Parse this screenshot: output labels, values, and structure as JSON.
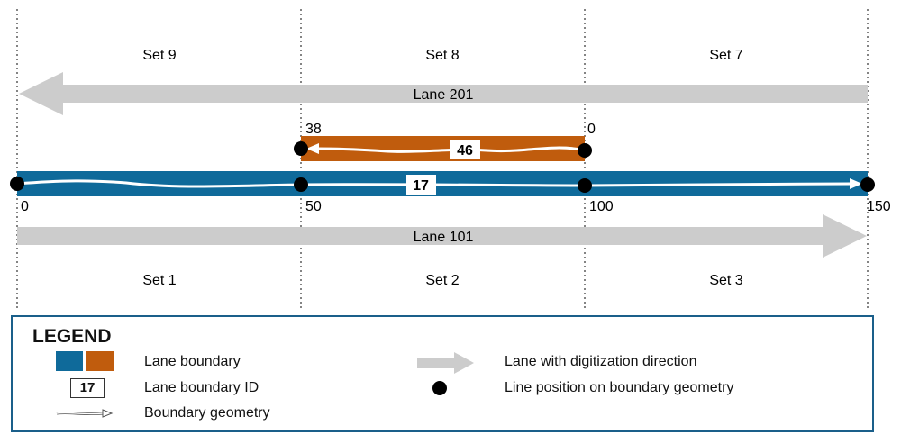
{
  "sets_top": [
    "Set 9",
    "Set 8",
    "Set 7"
  ],
  "sets_bottom": [
    "Set 1",
    "Set 2",
    "Set 3"
  ],
  "lanes": {
    "upper": {
      "label": "Lane 201",
      "direction": "left"
    },
    "lower": {
      "label": "Lane 101",
      "direction": "right"
    }
  },
  "boundaries": {
    "main": {
      "id": "17",
      "color": "#0f6a9a",
      "ticks": [
        "0",
        "50",
        "100",
        "150"
      ]
    },
    "upper": {
      "id": "46",
      "color": "#c05c0d",
      "ticks": [
        "38",
        "0"
      ]
    }
  },
  "legend": {
    "title": "LEGEND",
    "lane_boundary": "Lane boundary",
    "lane_boundary_id": "Lane boundary ID",
    "id_example": "17",
    "boundary_geometry": "Boundary geometry",
    "lane_direction": "Lane with digitization direction",
    "line_position": "Line position on boundary geometry",
    "swatch_colors": [
      "#0f6a9a",
      "#c05c0d"
    ]
  },
  "colors": {
    "lane_gray": "#cccccc",
    "border_blue": "#1a5f8a"
  }
}
